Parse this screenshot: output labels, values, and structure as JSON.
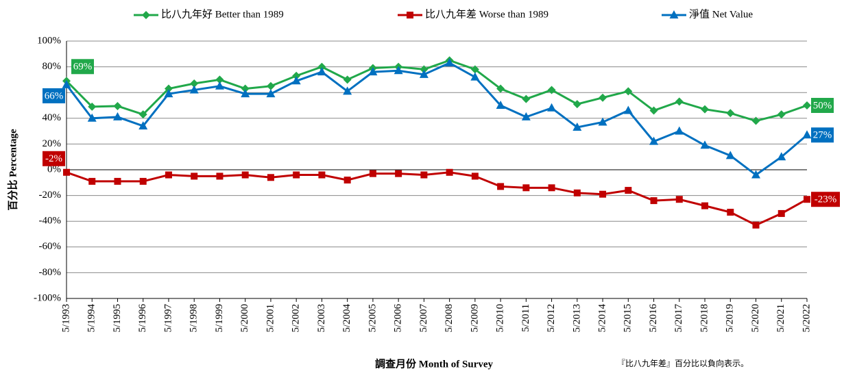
{
  "chart_data": {
    "type": "line",
    "categories": [
      "5/1993",
      "5/1994",
      "5/1995",
      "5/1996",
      "5/1997",
      "5/1998",
      "5/1999",
      "5/2000",
      "5/2001",
      "5/2002",
      "5/2003",
      "5/2004",
      "5/2005",
      "5/2006",
      "5/2007",
      "5/2008",
      "5/2009",
      "5/2010",
      "5/2011",
      "5/2012",
      "5/2013",
      "5/2014",
      "5/2015",
      "5/2016",
      "5/2017",
      "5/2018",
      "5/2019",
      "5/2020",
      "5/2021",
      "5/2022"
    ],
    "series": [
      {
        "name": "比八九年好 Better than 1989",
        "color": "#21a84a",
        "marker": "diamond",
        "values": [
          69,
          49,
          49.5,
          43,
          63,
          67,
          70,
          63,
          65,
          73,
          80,
          70,
          79,
          80,
          78,
          85,
          78,
          63,
          55,
          62,
          51,
          56,
          61,
          46,
          53,
          47,
          44,
          38,
          43,
          50
        ],
        "value_labels": [
          "69%",
          null,
          null,
          null,
          null,
          null,
          null,
          null,
          null,
          null,
          null,
          null,
          null,
          null,
          null,
          null,
          null,
          null,
          null,
          null,
          null,
          null,
          null,
          null,
          null,
          null,
          null,
          null,
          null,
          "50%"
        ]
      },
      {
        "name": "比八九年差 Worse than 1989",
        "color": "#c00000",
        "marker": "square",
        "values": [
          -2,
          -9,
          -9,
          -9,
          -4,
          -5,
          -5,
          -4,
          -6,
          -4,
          -4,
          -8,
          -3,
          -3,
          -4,
          -2,
          -5,
          -13,
          -14,
          -14,
          -18,
          -19,
          -16,
          -24,
          -23,
          -28,
          -33,
          -43,
          -34,
          -23
        ],
        "value_labels": [
          "-2%",
          null,
          null,
          null,
          null,
          null,
          null,
          null,
          null,
          null,
          null,
          null,
          null,
          null,
          null,
          null,
          null,
          null,
          null,
          null,
          null,
          null,
          null,
          null,
          null,
          null,
          null,
          null,
          null,
          "-23%"
        ]
      },
      {
        "name": "淨值 Net Value",
        "color": "#0070c0",
        "marker": "triangle",
        "values": [
          66,
          40,
          41,
          34,
          59,
          62,
          65,
          59,
          59,
          69,
          76,
          61,
          76,
          77,
          74,
          83,
          72,
          50,
          41,
          48,
          33,
          37,
          46,
          22,
          30,
          19,
          11,
          -4,
          10,
          27
        ],
        "value_labels": [
          "66%",
          null,
          null,
          null,
          null,
          null,
          null,
          null,
          null,
          null,
          null,
          null,
          null,
          null,
          null,
          null,
          null,
          null,
          null,
          null,
          null,
          null,
          null,
          null,
          null,
          null,
          null,
          null,
          null,
          "27%"
        ]
      }
    ],
    "ylim": [
      -100,
      100
    ],
    "yticks": [
      {
        "value": -100,
        "label": "-100%"
      },
      {
        "value": -80,
        "label": "-80%"
      },
      {
        "value": -60,
        "label": "-60%"
      },
      {
        "value": -40,
        "label": "-40%"
      },
      {
        "value": -20,
        "label": "-20%"
      },
      {
        "value": 0,
        "label": "0%"
      },
      {
        "value": 20,
        "label": "20%"
      },
      {
        "value": 40,
        "label": "40%"
      },
      {
        "value": 60,
        "label": "60%"
      },
      {
        "value": 80,
        "label": "80%"
      },
      {
        "value": 100,
        "label": "100%"
      }
    ],
    "grid": true,
    "legend": "top",
    "y_label": "百分比 Percentage",
    "x_label": "調查月份 Month of Survey",
    "footnote": "『比八九年差』百分比以負向表示。"
  }
}
